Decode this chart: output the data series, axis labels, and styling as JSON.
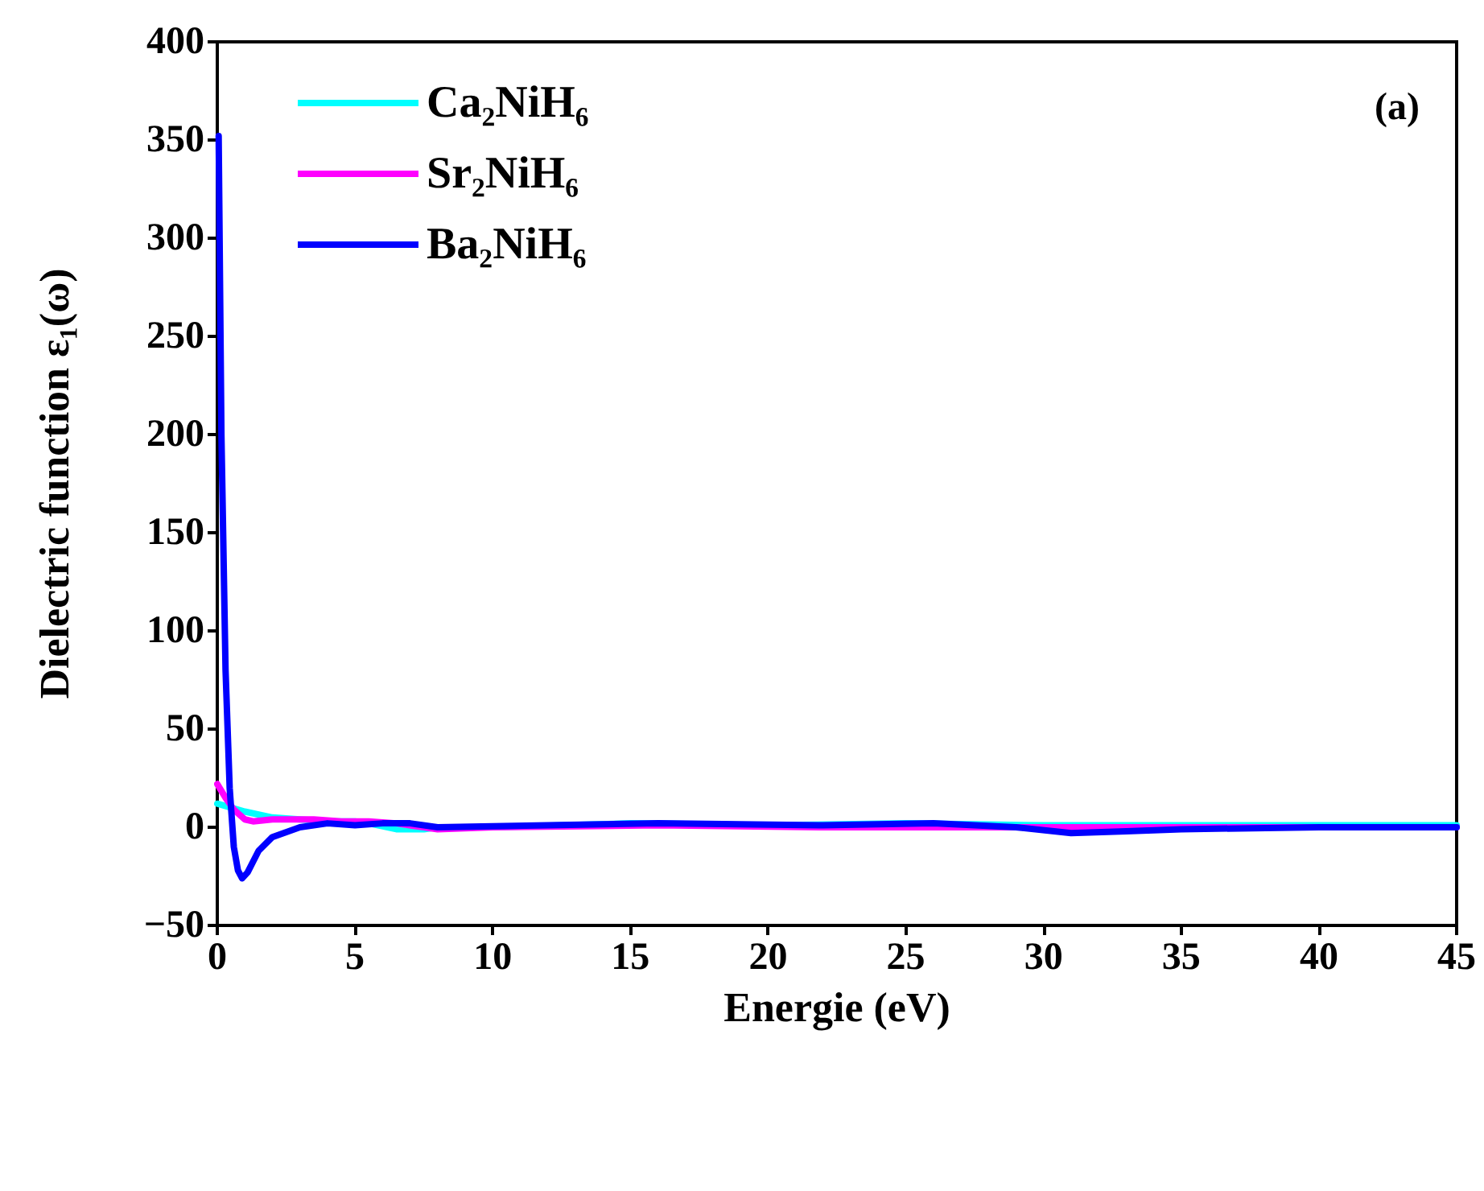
{
  "chart_data": {
    "type": "line",
    "xlabel": "Energie (eV)",
    "ylabel": "Dielectric function ε₁(ω)",
    "annotations": [
      "(a)"
    ],
    "xlim": [
      0,
      45
    ],
    "xticks": [
      0,
      5,
      10,
      15,
      20,
      25,
      30,
      35,
      40,
      45
    ],
    "ylim": [
      -50,
      400
    ],
    "yticks": [
      -50,
      0,
      50,
      100,
      150,
      200,
      250,
      300,
      350,
      400
    ],
    "grid": false,
    "legend": "top left",
    "marker": "none",
    "line_style": "solid",
    "series": [
      {
        "name": "Ca₂NiH₆",
        "color": "#00ffff",
        "x": [
          0,
          0.5,
          1,
          2,
          3,
          4,
          5,
          5.5,
          6.5,
          7.5,
          8,
          10,
          15,
          20,
          25,
          30,
          35,
          40,
          45
        ],
        "values": [
          12,
          10,
          8,
          5,
          4,
          3,
          3,
          2,
          -1,
          -1,
          0,
          0,
          2,
          1,
          2,
          1,
          1,
          1,
          1
        ]
      },
      {
        "name": "Sr₂NiH₆",
        "color": "#ff00ff",
        "x": [
          0,
          0.3,
          0.6,
          1,
          1.3,
          2,
          3,
          3.5,
          4.5,
          5.5,
          6.5,
          7.5,
          8,
          10,
          16,
          22,
          30,
          35,
          40,
          45
        ],
        "values": [
          22,
          15,
          9,
          4,
          3,
          4,
          4,
          4,
          3,
          3,
          2,
          0,
          -1,
          0,
          1,
          0,
          0,
          0,
          0,
          0
        ]
      },
      {
        "name": "Ba₂NiH₆",
        "color": "#0000ff",
        "x": [
          0.05,
          0.15,
          0.3,
          0.45,
          0.6,
          0.75,
          0.9,
          1.1,
          1.5,
          2,
          3,
          4,
          5,
          6,
          7,
          8,
          12,
          16,
          22,
          26,
          29,
          31,
          33,
          35,
          40,
          45
        ],
        "values": [
          352,
          200,
          80,
          20,
          -10,
          -22,
          -26,
          -23,
          -12,
          -5,
          0,
          2,
          1,
          2,
          2,
          0,
          1,
          2,
          1,
          2,
          0,
          -3,
          -2,
          -1,
          0,
          0
        ]
      }
    ]
  }
}
